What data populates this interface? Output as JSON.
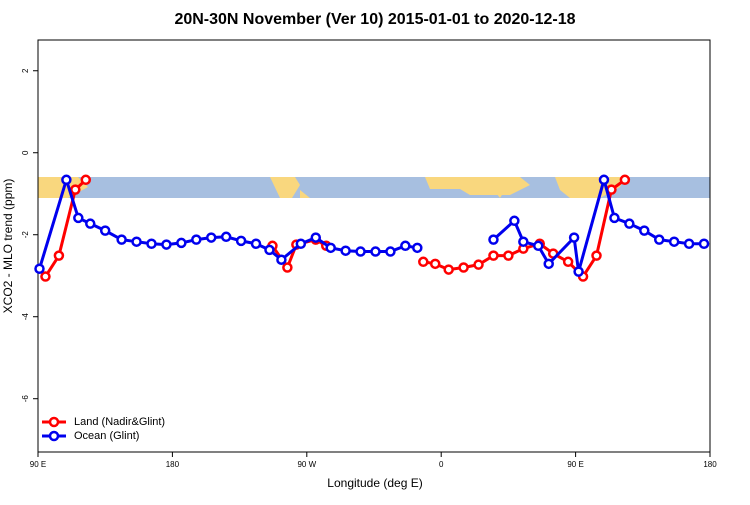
{
  "chart_data": {
    "type": "line",
    "title": "20N-30N November (Ver 10)   2015-01-01 to 2020-12-18",
    "xlabel": "Longitude (deg E)",
    "ylabel": "XCO2 - MLO trend (ppm)",
    "xlim": [
      90,
      540
    ],
    "ylim": [
      -7.3,
      2.75
    ],
    "xticks": [
      {
        "value": 90,
        "label": "90 E"
      },
      180,
      {
        "value": 270,
        "label": "90 W"
      },
      0,
      {
        "value": 450,
        "label": "90 E"
      },
      {
        "value": 540,
        "label": "180"
      }
    ],
    "yticks": [
      2,
      0,
      -2,
      -4,
      -6
    ],
    "legend": "bottom-left",
    "series": [
      {
        "name": "Land (Nadir&Glint)",
        "color": "#ff0000",
        "x": [
          95,
          104,
          115,
          122,
          null,
          247,
          257,
          263,
          276,
          283,
          null,
          348,
          356,
          365,
          375,
          385,
          395,
          405,
          415,
          426,
          435,
          445,
          455,
          464,
          474,
          483
        ],
        "values": [
          -3.02,
          -2.51,
          -0.9,
          -0.66,
          null,
          -2.27,
          -2.8,
          -2.24,
          -2.12,
          -2.27,
          null,
          -2.66,
          -2.71,
          -2.85,
          -2.8,
          -2.73,
          -2.51,
          -2.51,
          -2.34,
          -2.22,
          -2.46,
          -2.66,
          -3.02,
          -2.51,
          -0.9,
          -0.66
        ]
      },
      {
        "name": "Ocean (Glint)",
        "color": "#0000ee",
        "x": [
          91,
          109,
          117,
          125,
          135,
          146,
          156,
          166,
          176,
          186,
          196,
          206,
          216,
          226,
          236,
          245,
          253,
          266,
          276,
          286,
          296,
          306,
          316,
          326,
          336,
          344,
          null,
          395,
          409,
          415,
          425,
          432,
          449,
          452,
          469,
          476,
          486,
          496,
          506,
          516,
          526,
          536
        ],
        "values": [
          -2.83,
          -0.66,
          -1.59,
          -1.73,
          -1.9,
          -2.12,
          -2.17,
          -2.22,
          -2.24,
          -2.2,
          -2.12,
          -2.07,
          -2.05,
          -2.15,
          -2.22,
          -2.37,
          -2.61,
          -2.22,
          -2.07,
          -2.32,
          -2.39,
          -2.41,
          -2.41,
          -2.41,
          -2.27,
          -2.32,
          null,
          -2.12,
          -1.66,
          -2.17,
          -2.27,
          -2.71,
          -2.07,
          -2.9,
          -0.66,
          -1.59,
          -1.73,
          -1.9,
          -2.12,
          -2.17,
          -2.22,
          -2.22
        ]
      }
    ]
  }
}
